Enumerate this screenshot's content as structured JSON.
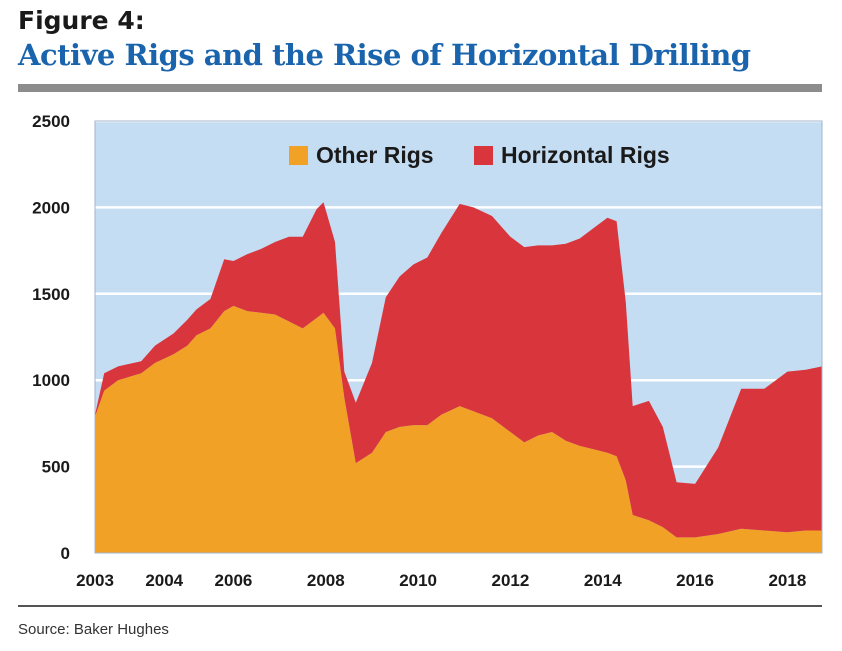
{
  "header": {
    "figure_label": "Figure 4:",
    "title": "Active Rigs and the Rise of Horizontal Drilling"
  },
  "footer": {
    "source": "Source: Baker Hughes"
  },
  "colors": {
    "plot_bg": "#c5ddf2",
    "other_rigs": "#f0a126",
    "horizontal_rigs": "#d8363c",
    "title_blue": "#1a64ad"
  },
  "chart_data": {
    "type": "area",
    "stacked": true,
    "title": "Active Rigs and the Rise of Horizontal Drilling",
    "xlabel": "",
    "ylabel": "",
    "xlim": [
      2003,
      2018.75
    ],
    "ylim": [
      0,
      2500
    ],
    "y_ticks": [
      0,
      500,
      1000,
      1500,
      2000,
      2500
    ],
    "x_ticks": [
      {
        "value": 2003,
        "label": "2003"
      },
      {
        "value": 2004.5,
        "label": "2004"
      },
      {
        "value": 2006,
        "label": "2006"
      },
      {
        "value": 2008,
        "label": "2008"
      },
      {
        "value": 2010,
        "label": "2010"
      },
      {
        "value": 2012,
        "label": "2012"
      },
      {
        "value": 2014,
        "label": "2014"
      },
      {
        "value": 2016,
        "label": "2016"
      },
      {
        "value": 2018,
        "label": "2018"
      }
    ],
    "grid": "horizontal",
    "legend": "top",
    "series": [
      {
        "name": "Other Rigs",
        "color": "#f0a126",
        "points": [
          [
            2003.0,
            790
          ],
          [
            2003.2,
            940
          ],
          [
            2003.5,
            1000
          ],
          [
            2004.0,
            1040
          ],
          [
            2004.3,
            1100
          ],
          [
            2004.7,
            1150
          ],
          [
            2005.0,
            1200
          ],
          [
            2005.2,
            1260
          ],
          [
            2005.5,
            1300
          ],
          [
            2005.8,
            1400
          ],
          [
            2006.0,
            1430
          ],
          [
            2006.3,
            1400
          ],
          [
            2006.6,
            1390
          ],
          [
            2006.9,
            1380
          ],
          [
            2007.2,
            1340
          ],
          [
            2007.5,
            1300
          ],
          [
            2007.8,
            1360
          ],
          [
            2007.95,
            1390
          ],
          [
            2008.2,
            1300
          ],
          [
            2008.4,
            900
          ],
          [
            2008.65,
            520
          ],
          [
            2009.0,
            580
          ],
          [
            2009.3,
            700
          ],
          [
            2009.6,
            730
          ],
          [
            2009.9,
            740
          ],
          [
            2010.2,
            740
          ],
          [
            2010.5,
            800
          ],
          [
            2010.9,
            850
          ],
          [
            2011.2,
            820
          ],
          [
            2011.6,
            780
          ],
          [
            2012.0,
            700
          ],
          [
            2012.3,
            640
          ],
          [
            2012.6,
            680
          ],
          [
            2012.9,
            700
          ],
          [
            2013.2,
            650
          ],
          [
            2013.5,
            620
          ],
          [
            2013.8,
            600
          ],
          [
            2014.1,
            580
          ],
          [
            2014.3,
            560
          ],
          [
            2014.5,
            420
          ],
          [
            2014.65,
            220
          ],
          [
            2015.0,
            190
          ],
          [
            2015.3,
            150
          ],
          [
            2015.6,
            90
          ],
          [
            2016.0,
            90
          ],
          [
            2016.5,
            110
          ],
          [
            2017.0,
            140
          ],
          [
            2017.5,
            130
          ],
          [
            2018.0,
            120
          ],
          [
            2018.4,
            130
          ],
          [
            2018.75,
            130
          ]
        ]
      },
      {
        "name": "Horizontal Rigs",
        "color": "#d8363c",
        "points": [
          [
            2003.0,
            10
          ],
          [
            2003.2,
            100
          ],
          [
            2003.5,
            80
          ],
          [
            2004.0,
            70
          ],
          [
            2004.3,
            100
          ],
          [
            2004.7,
            120
          ],
          [
            2005.0,
            150
          ],
          [
            2005.2,
            150
          ],
          [
            2005.5,
            170
          ],
          [
            2005.8,
            300
          ],
          [
            2006.0,
            260
          ],
          [
            2006.3,
            330
          ],
          [
            2006.6,
            370
          ],
          [
            2006.9,
            420
          ],
          [
            2007.2,
            490
          ],
          [
            2007.5,
            530
          ],
          [
            2007.8,
            630
          ],
          [
            2007.95,
            640
          ],
          [
            2008.2,
            500
          ],
          [
            2008.4,
            150
          ],
          [
            2008.65,
            350
          ],
          [
            2009.0,
            520
          ],
          [
            2009.3,
            780
          ],
          [
            2009.6,
            870
          ],
          [
            2009.9,
            930
          ],
          [
            2010.2,
            970
          ],
          [
            2010.5,
            1050
          ],
          [
            2010.9,
            1170
          ],
          [
            2011.2,
            1180
          ],
          [
            2011.6,
            1170
          ],
          [
            2012.0,
            1130
          ],
          [
            2012.3,
            1130
          ],
          [
            2012.6,
            1100
          ],
          [
            2012.9,
            1080
          ],
          [
            2013.2,
            1140
          ],
          [
            2013.5,
            1200
          ],
          [
            2013.8,
            1280
          ],
          [
            2014.1,
            1360
          ],
          [
            2014.3,
            1360
          ],
          [
            2014.5,
            1030
          ],
          [
            2014.65,
            630
          ],
          [
            2015.0,
            690
          ],
          [
            2015.3,
            580
          ],
          [
            2015.6,
            320
          ],
          [
            2016.0,
            310
          ],
          [
            2016.5,
            500
          ],
          [
            2017.0,
            810
          ],
          [
            2017.5,
            820
          ],
          [
            2018.0,
            930
          ],
          [
            2018.4,
            930
          ],
          [
            2018.75,
            950
          ]
        ]
      }
    ]
  }
}
